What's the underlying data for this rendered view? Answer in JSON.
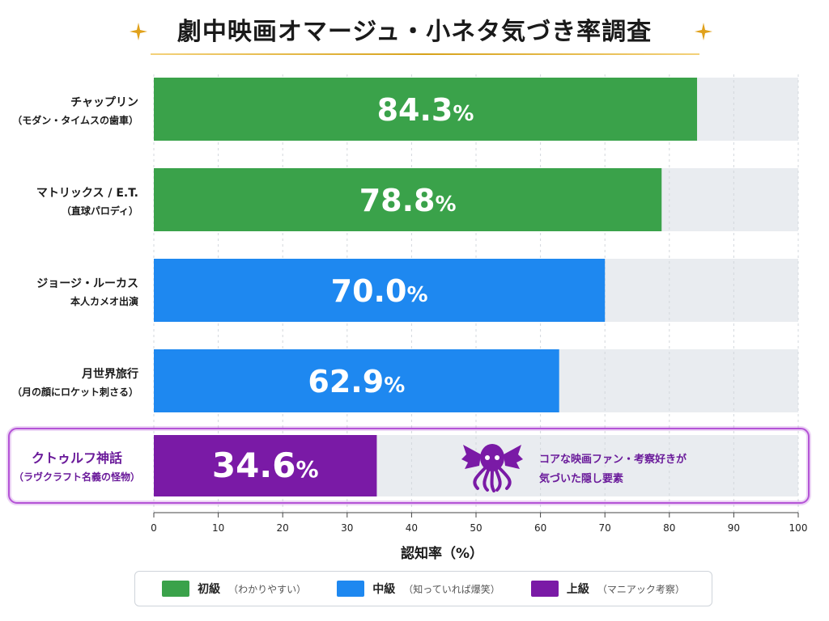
{
  "title": "劇中映画オマージュ・小ネタ気づき率調査",
  "colors": {
    "beginner": "#3aa24a",
    "intermediate": "#1e88f0",
    "advanced": "#7a1aa6",
    "track": "#e9ecf0",
    "gold": "#e0a11b",
    "highlight_border": "#b453d6",
    "annotation_text": "#6a1a9a"
  },
  "legend": [
    {
      "label": "初級",
      "sub": "（わかりやすい）",
      "color": "#3aa24a"
    },
    {
      "label": "中級",
      "sub": "（知っていれば爆笑）",
      "color": "#1e88f0"
    },
    {
      "label": "上級",
      "sub": "（マニアック考察）",
      "color": "#7a1aa6"
    }
  ],
  "annotation": {
    "icon": "octopus-icon",
    "line1": "コアな映画ファン・考察好きが",
    "line2": "気づいた隠し要素"
  },
  "chart_data": {
    "type": "bar",
    "orientation": "horizontal",
    "xlabel": "認知率（%）",
    "xlim": [
      0,
      100
    ],
    "xticks": [
      0,
      10,
      20,
      30,
      40,
      50,
      60,
      70,
      80,
      90,
      100
    ],
    "grid": true,
    "categories": [
      {
        "line1": "チャップリン",
        "line2": "（モダン・タイムスの歯車）"
      },
      {
        "line1": "マトリックス / E.T.",
        "line2": "（直球パロディ）"
      },
      {
        "line1": "ジョージ・ルーカス",
        "line2": "本人カメオ出演"
      },
      {
        "line1": "月世界旅行",
        "line2": "（月の顔にロケット刺さる）"
      },
      {
        "line1": "クトゥルフ神話",
        "line2": "（ラヴクラフト名義の怪物）"
      }
    ],
    "values": [
      84.3,
      78.8,
      70.0,
      62.9,
      34.6
    ],
    "value_labels": [
      "84.3",
      "78.8",
      "70.0",
      "62.9",
      "34.6"
    ],
    "percent_sign": "%",
    "levels": [
      "beginner",
      "beginner",
      "intermediate",
      "intermediate",
      "advanced"
    ],
    "highlighted": [
      false,
      false,
      false,
      false,
      true
    ]
  }
}
